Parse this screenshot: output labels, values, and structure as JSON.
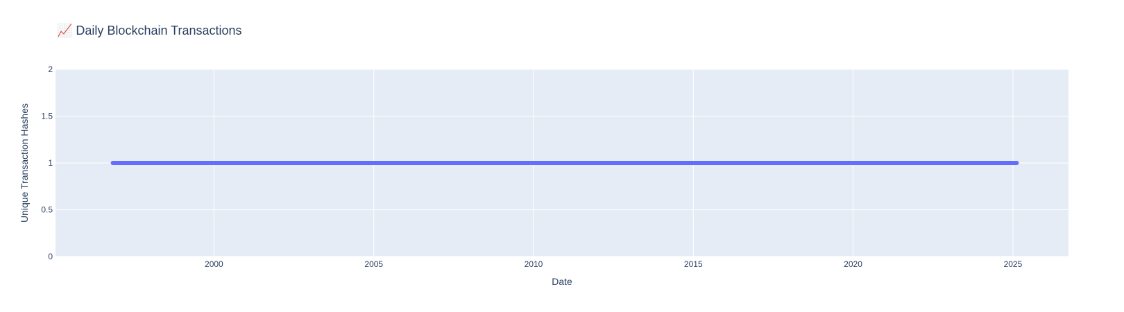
{
  "chart_data": {
    "type": "line",
    "title": "📈 Daily Blockchain Transactions",
    "xlabel": "Date",
    "ylabel": "Unique Transaction Hashes",
    "x_ticks": [
      "2000",
      "2005",
      "2010",
      "2015",
      "2020",
      "2025"
    ],
    "y_ticks": [
      "0",
      "0.5",
      "1",
      "1.5",
      "2"
    ],
    "xlim": [
      "1995-01-16",
      "2026-09-28"
    ],
    "ylim": [
      0,
      2
    ],
    "series": [
      {
        "x": [
          "1996-11-01",
          "2025-02-14"
        ],
        "y": [
          1,
          1
        ],
        "color": "#636efa"
      }
    ],
    "grid": true,
    "legend": "none",
    "colors": {
      "plot_bg": "#e5ecf6",
      "paper_bg": "#ffffff",
      "grid": "#ffffff",
      "text": "#2a3f5f"
    }
  }
}
